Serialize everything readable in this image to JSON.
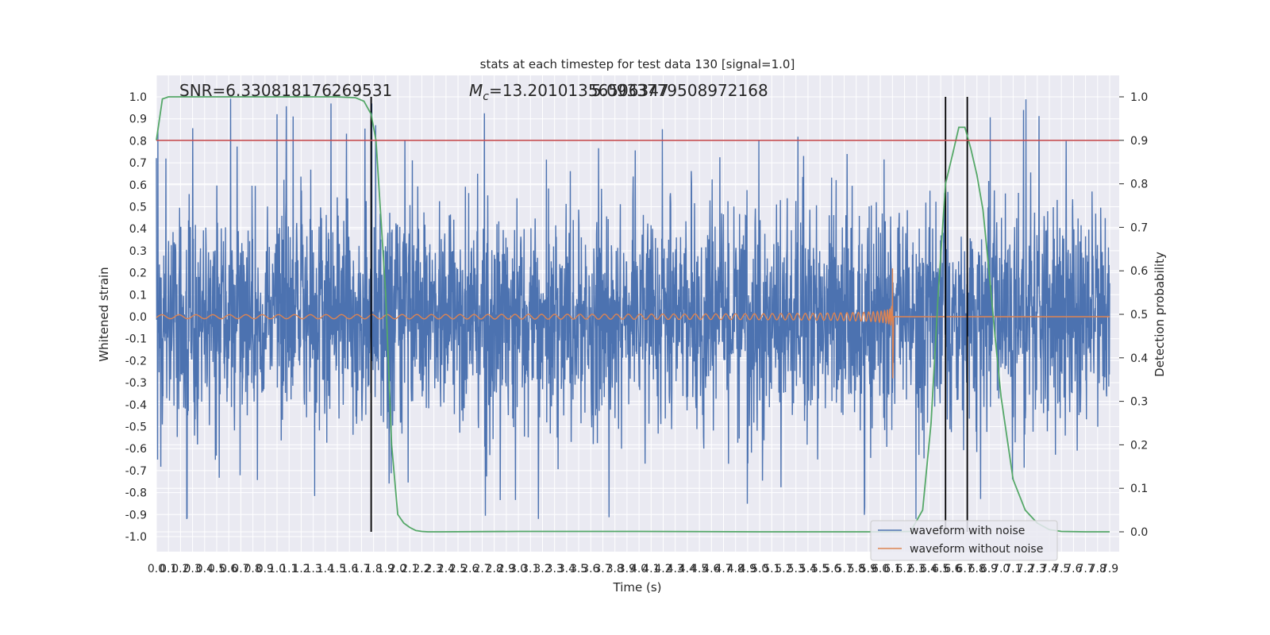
{
  "chart_data": {
    "type": "line",
    "title": "stats at each timestep for test data 130 [signal=1.0]",
    "xlabel": "Time (s)",
    "ylabel_left": "Whitened strain",
    "ylabel_right": "Detection probability",
    "annotations": {
      "snr": "SNR=6.330818176269531",
      "mc_prefix": "M",
      "mc_sub": "c",
      "mc_value": "=13.20101356506347",
      "overlap": "5.0933779508972168"
    },
    "xlim": [
      0.0,
      7.9
    ],
    "ylim_left": [
      -1.075,
      1.1
    ],
    "ylim_right": [
      0.0,
      1.0
    ],
    "x_ticks": [
      "0.0",
      "0.1",
      "0.2",
      "0.3",
      "0.4",
      "0.5",
      "0.6",
      "0.7",
      "0.8",
      "0.9",
      "1.0",
      "1.1",
      "1.2",
      "1.3",
      "1.4",
      "1.5",
      "1.6",
      "1.7",
      "1.8",
      "1.9",
      "2.0",
      "2.1",
      "2.2",
      "2.3",
      "2.4",
      "2.5",
      "2.6",
      "2.7",
      "2.8",
      "2.9",
      "3.0",
      "3.1",
      "3.2",
      "3.3",
      "3.4",
      "3.5",
      "3.6",
      "3.7",
      "3.8",
      "3.9",
      "4.0",
      "4.1",
      "4.2",
      "4.3",
      "4.4",
      "4.5",
      "4.6",
      "4.7",
      "4.8",
      "4.9",
      "5.0",
      "5.1",
      "5.2",
      "5.3",
      "5.4",
      "5.5",
      "5.6",
      "5.7",
      "5.8",
      "5.9",
      "6.0",
      "6.1",
      "6.2",
      "6.3",
      "6.4",
      "6.5",
      "6.6",
      "6.7",
      "6.8",
      "6.9",
      "7.0",
      "7.1",
      "7.2",
      "7.3",
      "7.4",
      "7.5",
      "7.6",
      "7.7",
      "7.8",
      "7.9"
    ],
    "y_ticks_left": [
      "1.0",
      "0.9",
      "0.8",
      "0.7",
      "0.6",
      "0.5",
      "0.4",
      "0.3",
      "0.2",
      "0.1",
      "0.0",
      "-0.1",
      "-0.2",
      "-0.3",
      "-0.4",
      "-0.5",
      "-0.6",
      "-0.7",
      "-0.8",
      "-0.9",
      "-1.0"
    ],
    "y_ticks_right": [
      "1.0",
      "0.9",
      "0.8",
      "0.7",
      "0.6",
      "0.5",
      "0.4",
      "0.3",
      "0.2",
      "0.1",
      "0.0"
    ],
    "threshold_right": 0.9,
    "vertical_markers_x": [
      1.78,
      6.54,
      6.72
    ],
    "series": [
      {
        "name": "waveform with noise",
        "color": "#4c72b0",
        "kind": "noise",
        "amplitude_envelope": [
          0.32,
          0.42,
          1.0
        ],
        "spike_min": -0.92,
        "spike_max": 1.0
      },
      {
        "name": "waveform without noise",
        "color": "#dd8452",
        "kind": "chirp",
        "merger_x": 6.1,
        "peak_y": [
          0.22,
          -0.28
        ]
      },
      {
        "color": "#55a868",
        "kind": "probability",
        "x": [
          0.0,
          0.05,
          0.1,
          0.5,
          1.0,
          1.5,
          1.65,
          1.72,
          1.78,
          1.82,
          1.9,
          1.95,
          2.0,
          2.05,
          2.1,
          2.15,
          2.2,
          2.25,
          2.35,
          3.0,
          4.0,
          5.0,
          6.0,
          6.25,
          6.35,
          6.42,
          6.48,
          6.54,
          6.6,
          6.65,
          6.7,
          6.75,
          6.8,
          6.85,
          6.9,
          6.95,
          7.0,
          7.1,
          7.2,
          7.3,
          7.4,
          7.5,
          7.7,
          7.9
        ],
        "y": [
          0.9,
          0.995,
          1.0,
          1.0,
          1.0,
          1.0,
          0.998,
          0.99,
          0.96,
          0.9,
          0.55,
          0.2,
          0.04,
          0.02,
          0.01,
          0.003,
          0.001,
          0.0,
          0.0,
          0.001,
          0.001,
          0.0,
          0.0,
          0.001,
          0.05,
          0.25,
          0.55,
          0.8,
          0.87,
          0.93,
          0.93,
          0.88,
          0.82,
          0.74,
          0.6,
          0.45,
          0.31,
          0.12,
          0.05,
          0.02,
          0.005,
          0.001,
          0.0,
          0.0
        ]
      }
    ],
    "legend": {
      "placement": "lower-right",
      "entries": [
        "waveform with noise",
        "waveform without noise"
      ]
    },
    "grid": true,
    "colors": {
      "plot_bg": "#eaeaf2",
      "grid": "#ffffff",
      "threshold": "#c44e52",
      "marker": "#000000"
    }
  }
}
